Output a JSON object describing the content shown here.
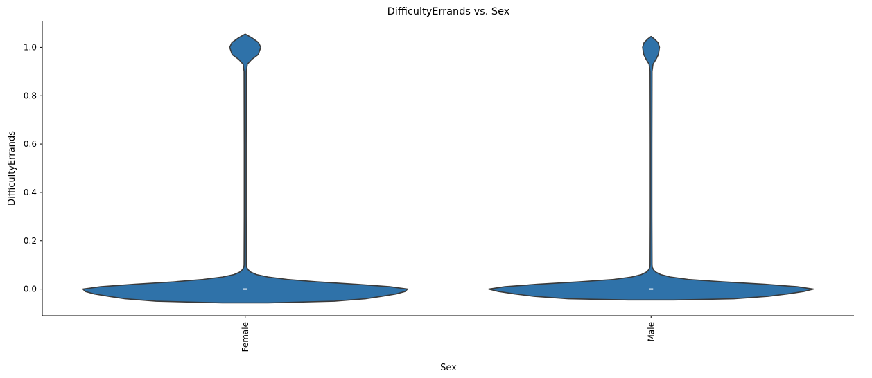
{
  "chart_data": {
    "type": "violin",
    "title": "DifficultyErrands vs. Sex",
    "xlabel": "Sex",
    "ylabel": "DifficultyErrands",
    "categories": [
      "Female",
      "Male"
    ],
    "ylim": [
      -0.11,
      1.11
    ],
    "yticks": [
      0.0,
      0.2,
      0.4,
      0.6,
      0.8,
      1.0
    ],
    "ytick_labels": [
      "0.0",
      "0.2",
      "0.4",
      "0.6",
      "0.8",
      "1.0"
    ],
    "fill_color": "#2f72a9",
    "edge_color": "#3a3a3a",
    "median_color": "#ffffff",
    "violins": [
      {
        "category": "Female",
        "median": 0.0,
        "density_profile": [
          [
            -0.057,
            0.14
          ],
          [
            -0.05,
            0.55
          ],
          [
            -0.04,
            0.74
          ],
          [
            -0.03,
            0.84
          ],
          [
            -0.02,
            0.93
          ],
          [
            -0.01,
            0.985
          ],
          [
            0.0,
            1.0
          ],
          [
            0.01,
            0.89
          ],
          [
            0.02,
            0.68
          ],
          [
            0.03,
            0.44
          ],
          [
            0.04,
            0.26
          ],
          [
            0.05,
            0.14
          ],
          [
            0.06,
            0.07
          ],
          [
            0.07,
            0.035
          ],
          [
            0.08,
            0.018
          ],
          [
            0.09,
            0.009
          ],
          [
            0.1,
            0.007
          ],
          [
            0.3,
            0.006
          ],
          [
            0.6,
            0.006
          ],
          [
            0.9,
            0.007
          ],
          [
            0.93,
            0.013
          ],
          [
            0.95,
            0.04
          ],
          [
            0.97,
            0.08
          ],
          [
            1.0,
            0.096
          ],
          [
            1.02,
            0.082
          ],
          [
            1.04,
            0.04
          ],
          [
            1.055,
            0.0
          ]
        ]
      },
      {
        "category": "Male",
        "median": 0.0,
        "density_profile": [
          [
            -0.045,
            0.14
          ],
          [
            -0.04,
            0.51
          ],
          [
            -0.03,
            0.72
          ],
          [
            -0.02,
            0.84
          ],
          [
            -0.01,
            0.94
          ],
          [
            0.0,
            1.0
          ],
          [
            0.01,
            0.9
          ],
          [
            0.02,
            0.7
          ],
          [
            0.03,
            0.44
          ],
          [
            0.04,
            0.23
          ],
          [
            0.05,
            0.12
          ],
          [
            0.06,
            0.06
          ],
          [
            0.07,
            0.03
          ],
          [
            0.08,
            0.015
          ],
          [
            0.09,
            0.008
          ],
          [
            0.1,
            0.006
          ],
          [
            0.3,
            0.005
          ],
          [
            0.6,
            0.005
          ],
          [
            0.9,
            0.006
          ],
          [
            0.93,
            0.012
          ],
          [
            0.95,
            0.03
          ],
          [
            0.97,
            0.045
          ],
          [
            1.0,
            0.052
          ],
          [
            1.02,
            0.043
          ],
          [
            1.035,
            0.02
          ],
          [
            1.045,
            0.0
          ]
        ]
      }
    ],
    "grid": false
  }
}
